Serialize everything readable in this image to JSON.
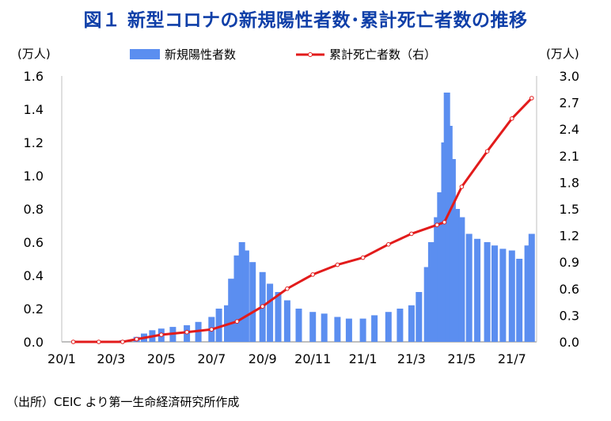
{
  "title": "図１ 新型コロナの新規陽性者数･累計死亡者数の推移",
  "source": "（出所）CEIC より第一生命経済研究所作成",
  "chart_data": {
    "type": "bar+line",
    "left_unit": "(万人)",
    "right_unit": "(万人)",
    "x_tick_labels": [
      "20/1",
      "20/3",
      "20/5",
      "20/7",
      "20/9",
      "20/11",
      "21/1",
      "21/3",
      "21/5",
      "21/7"
    ],
    "y_left": {
      "lim": [
        0,
        1.6
      ],
      "ticks": [
        "0.0",
        "0.2",
        "0.4",
        "0.6",
        "0.8",
        "1.0",
        "1.2",
        "1.4",
        "1.6"
      ]
    },
    "y_right": {
      "lim": [
        0,
        3.0
      ],
      "ticks": [
        "0.0",
        "0.3",
        "0.6",
        "0.9",
        "1.2",
        "1.5",
        "1.8",
        "2.1",
        "2.4",
        "2.7",
        "3.0"
      ]
    },
    "legend_position": "top",
    "series": [
      {
        "name": "新規陽性者数",
        "kind": "bar",
        "axis": "left",
        "color": "#5b8ef0",
        "x": [
          "2020-01-15",
          "2020-02-01",
          "2020-02-15",
          "2020-03-01",
          "2020-03-15",
          "2020-04-01",
          "2020-04-10",
          "2020-04-20",
          "2020-05-01",
          "2020-05-15",
          "2020-06-01",
          "2020-06-15",
          "2020-07-01",
          "2020-07-10",
          "2020-07-20",
          "2020-07-25",
          "2020-08-01",
          "2020-08-07",
          "2020-08-12",
          "2020-08-20",
          "2020-09-01",
          "2020-09-10",
          "2020-09-20",
          "2020-10-01",
          "2020-10-15",
          "2020-11-01",
          "2020-11-15",
          "2020-12-01",
          "2020-12-15",
          "2021-01-01",
          "2021-01-15",
          "2021-02-01",
          "2021-02-15",
          "2021-03-01",
          "2021-03-10",
          "2021-03-20",
          "2021-03-25",
          "2021-04-01",
          "2021-04-05",
          "2021-04-10",
          "2021-04-13",
          "2021-04-16",
          "2021-04-20",
          "2021-04-25",
          "2021-05-01",
          "2021-05-10",
          "2021-05-20",
          "2021-06-01",
          "2021-06-10",
          "2021-06-20",
          "2021-07-01",
          "2021-07-10",
          "2021-07-20",
          "2021-07-25"
        ],
        "values": [
          0.0,
          0.0,
          0.003,
          0.005,
          0.01,
          0.03,
          0.05,
          0.07,
          0.08,
          0.09,
          0.1,
          0.12,
          0.15,
          0.2,
          0.22,
          0.38,
          0.52,
          0.6,
          0.55,
          0.48,
          0.42,
          0.35,
          0.3,
          0.25,
          0.2,
          0.18,
          0.17,
          0.15,
          0.14,
          0.14,
          0.16,
          0.18,
          0.2,
          0.22,
          0.3,
          0.45,
          0.6,
          0.75,
          0.9,
          1.2,
          1.5,
          1.3,
          1.1,
          0.8,
          0.75,
          0.65,
          0.62,
          0.6,
          0.58,
          0.56,
          0.55,
          0.5,
          0.58,
          0.65
        ]
      },
      {
        "name": "累計死亡者数（右）",
        "kind": "line",
        "axis": "right",
        "color": "#e21b1b",
        "x": [
          "2020-01-15",
          "2020-02-15",
          "2020-03-15",
          "2020-04-01",
          "2020-05-01",
          "2020-06-01",
          "2020-07-01",
          "2020-08-01",
          "2020-09-01",
          "2020-10-01",
          "2020-11-01",
          "2020-12-01",
          "2021-01-01",
          "2021-02-01",
          "2021-03-01",
          "2021-04-01",
          "2021-04-10",
          "2021-05-01",
          "2021-06-01",
          "2021-07-01",
          "2021-07-25"
        ],
        "values": [
          0.0,
          0.0,
          0.0,
          0.03,
          0.08,
          0.11,
          0.14,
          0.23,
          0.4,
          0.6,
          0.76,
          0.87,
          0.95,
          1.1,
          1.22,
          1.32,
          1.35,
          1.75,
          2.15,
          2.52,
          2.75
        ]
      }
    ]
  }
}
